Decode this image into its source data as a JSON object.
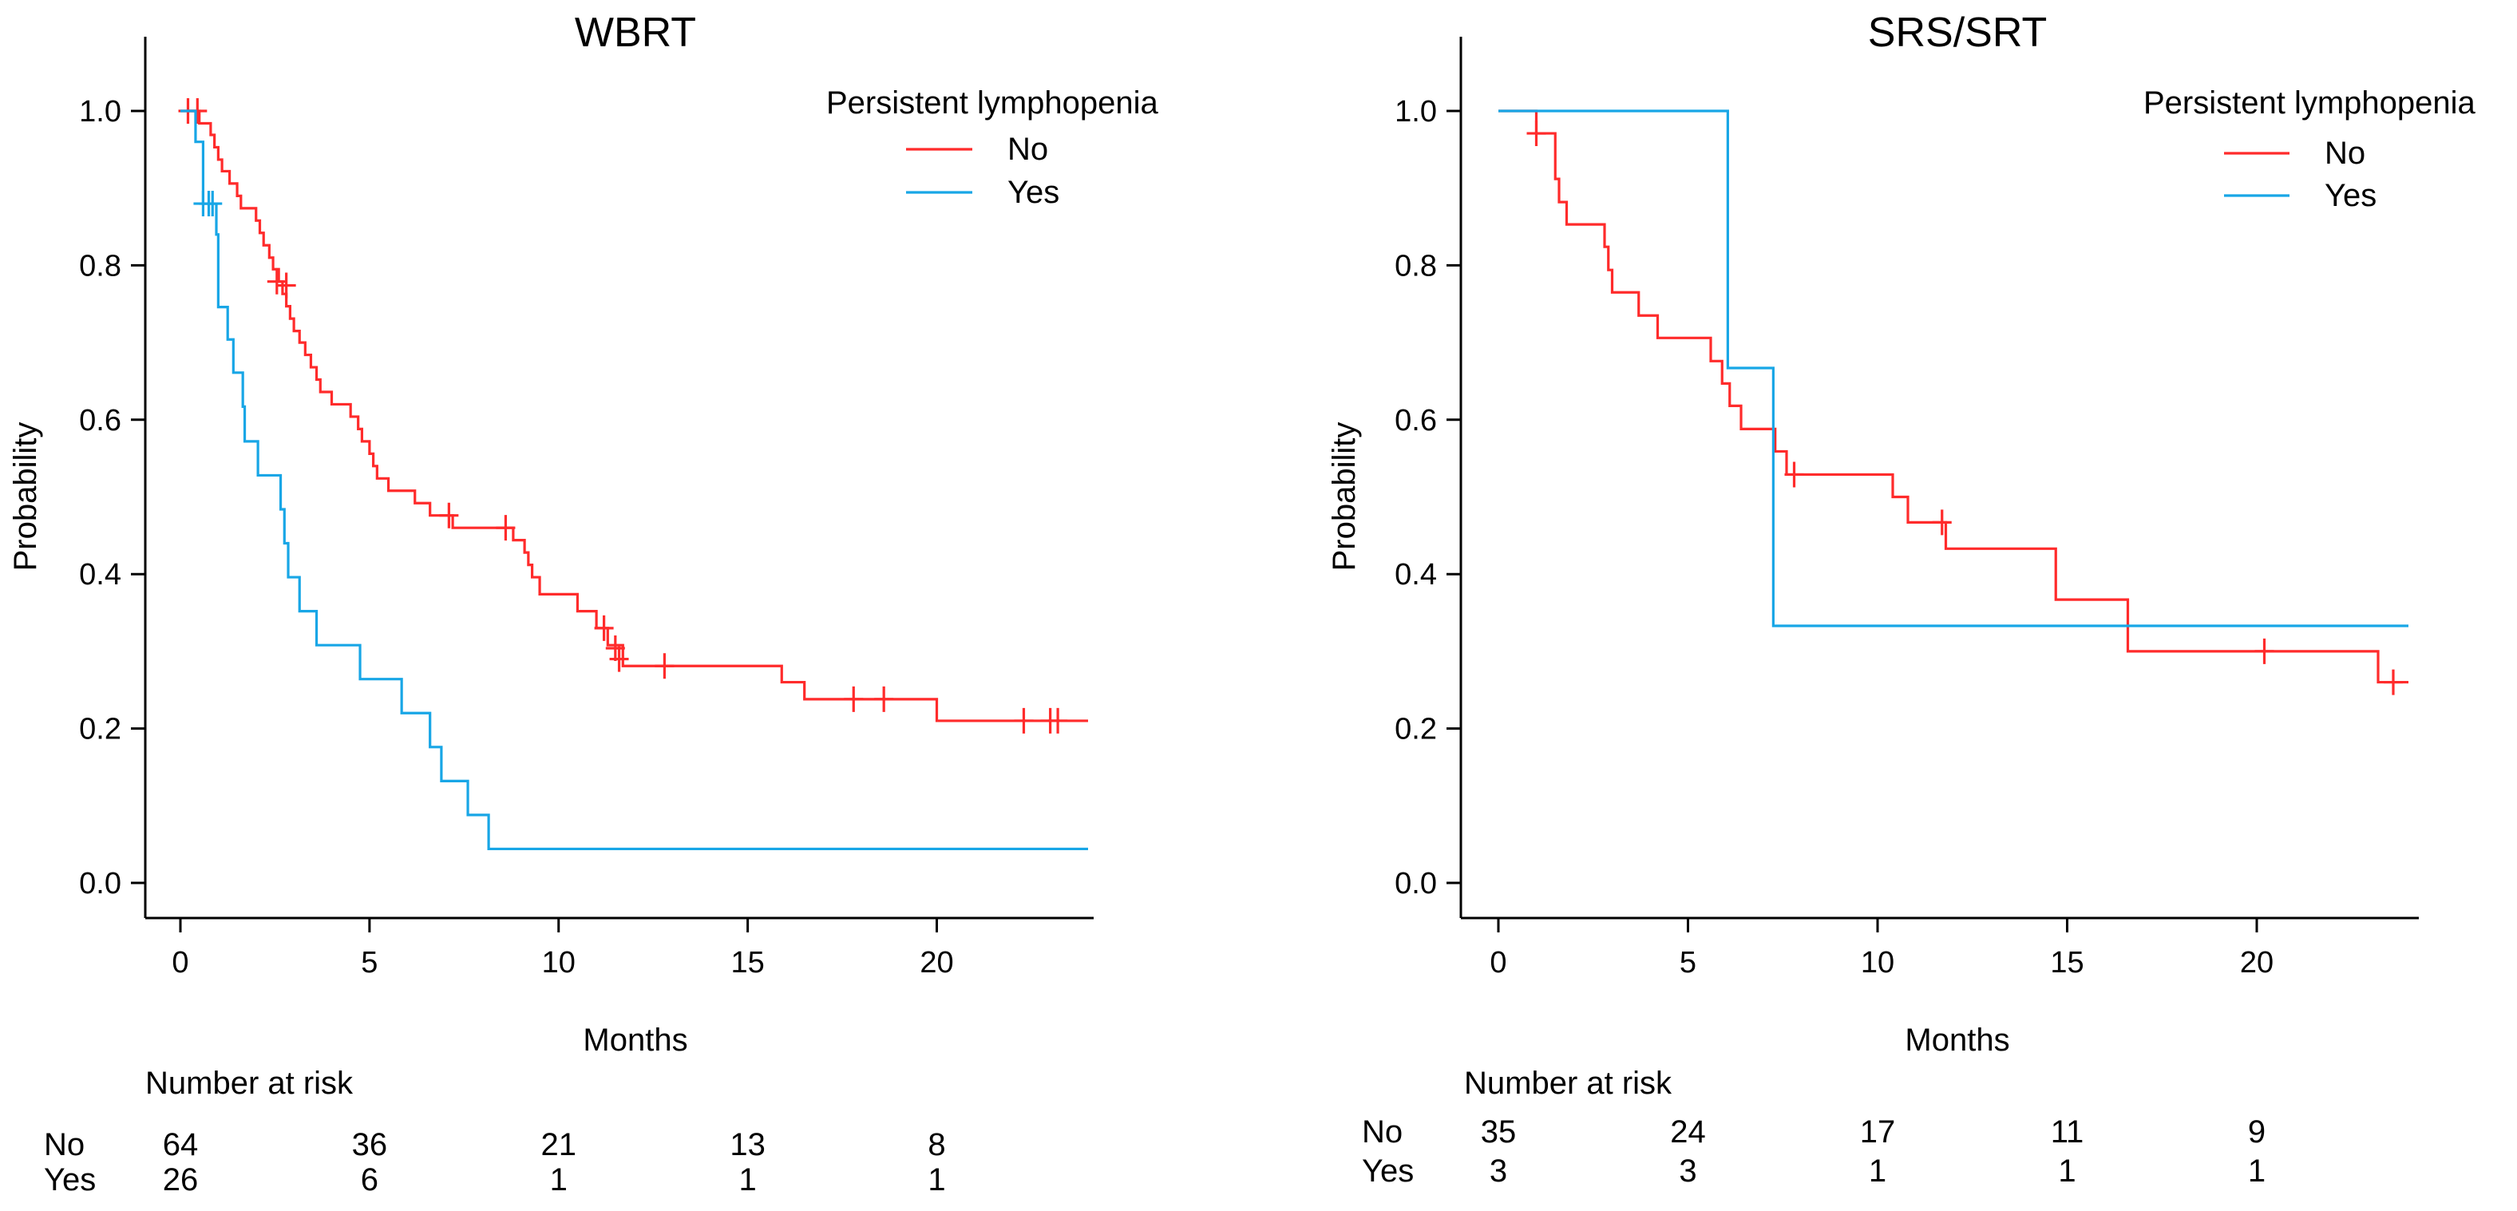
{
  "chart_data": [
    {
      "type": "line",
      "title": "WBRT",
      "xlabel": "Months",
      "ylabel": "Probability",
      "xlim": [
        -0.8,
        24.5
      ],
      "ylim": [
        -0.05,
        1.04
      ],
      "x_ticks": [
        0,
        5,
        10,
        15,
        20
      ],
      "y_ticks": [
        0.0,
        0.2,
        0.4,
        0.6,
        0.8,
        1.0
      ],
      "y_tick_labels": [
        "0.0",
        "0.2",
        "0.4",
        "0.6",
        "0.8",
        "1.0"
      ],
      "legend": {
        "title": "Persistent lymphopenia",
        "position": "top-right"
      },
      "series": [
        {
          "name": "No",
          "color": "#ff2b2b",
          "steps": [
            [
              0,
              1.0
            ],
            [
              0.5,
              0.984
            ],
            [
              0.8,
              0.969
            ],
            [
              0.9,
              0.953
            ],
            [
              1.0,
              0.937
            ],
            [
              1.1,
              0.922
            ],
            [
              1.3,
              0.906
            ],
            [
              1.5,
              0.89
            ],
            [
              1.6,
              0.874
            ],
            [
              2.0,
              0.858
            ],
            [
              2.1,
              0.842
            ],
            [
              2.2,
              0.826
            ],
            [
              2.35,
              0.81
            ],
            [
              2.45,
              0.795
            ],
            [
              2.6,
              0.779
            ],
            [
              2.7,
              0.763
            ],
            [
              2.8,
              0.747
            ],
            [
              2.9,
              0.731
            ],
            [
              3.0,
              0.715
            ],
            [
              3.15,
              0.7
            ],
            [
              3.3,
              0.684
            ],
            [
              3.45,
              0.668
            ],
            [
              3.6,
              0.652
            ],
            [
              3.7,
              0.636
            ],
            [
              4.0,
              0.62
            ],
            [
              4.5,
              0.604
            ],
            [
              4.7,
              0.588
            ],
            [
              4.8,
              0.572
            ],
            [
              5.0,
              0.556
            ],
            [
              5.1,
              0.54
            ],
            [
              5.2,
              0.524
            ],
            [
              5.5,
              0.508
            ],
            [
              6.2,
              0.492
            ],
            [
              6.6,
              0.476
            ],
            [
              7.2,
              0.46
            ],
            [
              8.8,
              0.444
            ],
            [
              9.1,
              0.428
            ],
            [
              9.2,
              0.412
            ],
            [
              9.3,
              0.396
            ],
            [
              9.5,
              0.374
            ],
            [
              10.5,
              0.352
            ],
            [
              11.0,
              0.33
            ],
            [
              11.3,
              0.308
            ],
            [
              11.7,
              0.281
            ],
            [
              15.9,
              0.26
            ],
            [
              16.5,
              0.238
            ],
            [
              20.0,
              0.21
            ],
            [
              24.0,
              0.21
            ]
          ],
          "censored": [
            [
              0.2,
              1.0
            ],
            [
              0.45,
              1.0
            ],
            [
              2.55,
              0.779
            ],
            [
              2.8,
              0.774
            ],
            [
              7.1,
              0.476
            ],
            [
              8.6,
              0.46
            ],
            [
              11.2,
              0.33
            ],
            [
              11.5,
              0.304
            ],
            [
              11.6,
              0.29
            ],
            [
              12.8,
              0.281
            ],
            [
              17.8,
              0.238
            ],
            [
              18.6,
              0.238
            ],
            [
              22.3,
              0.21
            ],
            [
              23.0,
              0.21
            ],
            [
              23.2,
              0.21
            ]
          ]
        },
        {
          "name": "Yes",
          "color": "#18a6e6",
          "steps": [
            [
              0,
              1.0
            ],
            [
              0.4,
              0.96
            ],
            [
              0.6,
              0.88
            ],
            [
              0.95,
              0.84
            ],
            [
              1.0,
              0.746
            ],
            [
              1.25,
              0.704
            ],
            [
              1.4,
              0.661
            ],
            [
              1.65,
              0.617
            ],
            [
              1.7,
              0.572
            ],
            [
              2.05,
              0.528
            ],
            [
              2.65,
              0.484
            ],
            [
              2.75,
              0.44
            ],
            [
              2.85,
              0.396
            ],
            [
              3.15,
              0.352
            ],
            [
              3.6,
              0.308
            ],
            [
              4.75,
              0.264
            ],
            [
              5.85,
              0.22
            ],
            [
              6.6,
              0.176
            ],
            [
              6.9,
              0.132
            ],
            [
              7.6,
              0.088
            ],
            [
              8.15,
              0.044
            ],
            [
              24.0,
              0.044
            ]
          ],
          "censored": [
            [
              0.6,
              0.88
            ],
            [
              0.75,
              0.88
            ],
            [
              0.85,
              0.88
            ]
          ]
        }
      ],
      "risk_table": {
        "title": "Number at risk",
        "times": [
          0,
          5,
          10,
          15,
          20
        ],
        "rows": [
          {
            "label": "No",
            "values": [
              "64",
              "36",
              "21",
              "13",
              "8"
            ]
          },
          {
            "label": "Yes",
            "values": [
              "26",
              "6",
              "1",
              "1",
              "1"
            ]
          }
        ]
      }
    },
    {
      "type": "line",
      "title": "SRS/SRT",
      "xlabel": "Months",
      "ylabel": "Probability",
      "xlim": [
        -0.8,
        24.5
      ],
      "ylim": [
        -0.05,
        1.04
      ],
      "x_ticks": [
        0,
        5,
        10,
        15,
        20
      ],
      "y_ticks": [
        0.0,
        0.2,
        0.4,
        0.6,
        0.8,
        1.0
      ],
      "y_tick_labels": [
        "0.0",
        "0.2",
        "0.4",
        "0.6",
        "0.8",
        "1.0"
      ],
      "legend": {
        "title": "Persistent lymphopenia",
        "position": "top-right"
      },
      "series": [
        {
          "name": "No",
          "color": "#ff2b2b",
          "steps": [
            [
              0,
              1.0
            ],
            [
              1.0,
              0.971
            ],
            [
              1.5,
              0.912
            ],
            [
              1.6,
              0.882
            ],
            [
              1.8,
              0.853
            ],
            [
              2.8,
              0.824
            ],
            [
              2.9,
              0.794
            ],
            [
              3.0,
              0.765
            ],
            [
              3.7,
              0.735
            ],
            [
              4.2,
              0.706
            ],
            [
              5.6,
              0.676
            ],
            [
              5.9,
              0.647
            ],
            [
              6.1,
              0.618
            ],
            [
              6.4,
              0.588
            ],
            [
              7.3,
              0.559
            ],
            [
              7.6,
              0.529
            ],
            [
              10.4,
              0.5
            ],
            [
              10.8,
              0.467
            ],
            [
              11.8,
              0.433
            ],
            [
              14.7,
              0.367
            ],
            [
              16.6,
              0.3
            ],
            [
              23.2,
              0.26
            ],
            [
              24.0,
              0.26
            ]
          ],
          "censored": [
            [
              1.0,
              0.971
            ],
            [
              7.8,
              0.529
            ],
            [
              11.7,
              0.467
            ],
            [
              20.2,
              0.3
            ],
            [
              23.6,
              0.26
            ]
          ]
        },
        {
          "name": "Yes",
          "color": "#18a6e6",
          "steps": [
            [
              0,
              1.0
            ],
            [
              6.05,
              0.667
            ],
            [
              7.25,
              0.333
            ],
            [
              24.0,
              0.333
            ]
          ],
          "censored": []
        }
      ],
      "risk_table": {
        "title": "Number at risk",
        "times": [
          0,
          5,
          10,
          15,
          20
        ],
        "rows": [
          {
            "label": "No",
            "values": [
              "35",
              "24",
              "17",
              "11",
              "9"
            ]
          },
          {
            "label": "Yes",
            "values": [
              "3",
              "3",
              "1",
              "1",
              "1"
            ]
          }
        ]
      }
    }
  ]
}
